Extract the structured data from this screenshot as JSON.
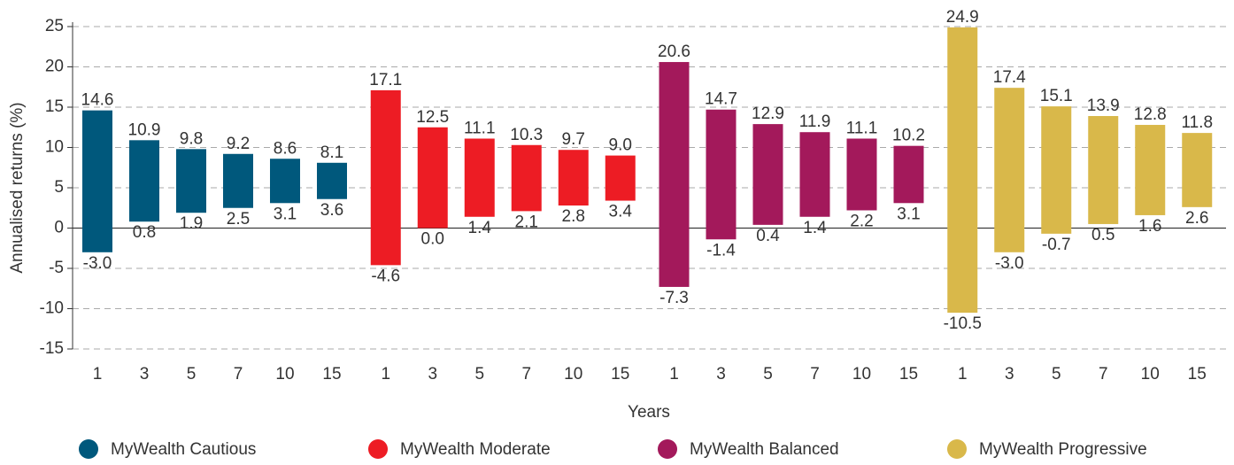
{
  "chart_data": {
    "type": "floating-bar",
    "y_label": "Annualised returns (%)",
    "x_label": "Years",
    "categories": [
      "1",
      "3",
      "5",
      "7",
      "10",
      "15"
    ],
    "ylim": [
      -15,
      25
    ],
    "yticks": [
      -15,
      -10,
      -5,
      0,
      5,
      10,
      15,
      20,
      25
    ],
    "grid": true,
    "series": [
      {
        "name": "MyWealth Cautious",
        "color": "#00587c",
        "low": [
          -3.0,
          0.8,
          1.9,
          2.5,
          3.1,
          3.6
        ],
        "high": [
          14.6,
          10.9,
          9.8,
          9.2,
          8.6,
          8.1
        ],
        "low_labels": [
          "-3.0",
          "0.8",
          "1.9",
          "2.5",
          "3.1",
          "3.6"
        ],
        "high_labels": [
          "14.6",
          "10.9",
          "9.8",
          "9.2",
          "8.6",
          "8.1"
        ]
      },
      {
        "name": "MyWealth Moderate",
        "color": "#ed1c24",
        "low": [
          -4.6,
          0.0,
          1.4,
          2.1,
          2.8,
          3.4
        ],
        "high": [
          17.1,
          12.5,
          11.1,
          10.3,
          9.7,
          9.0
        ],
        "low_labels": [
          "-4.6",
          "0.0",
          "1.4",
          "2.1",
          "2.8",
          "3.4"
        ],
        "high_labels": [
          "17.1",
          "12.5",
          "11.1",
          "10.3",
          "9.7",
          "9.0"
        ]
      },
      {
        "name": "MyWealth Balanced",
        "color": "#a3195b",
        "low": [
          -7.3,
          -1.4,
          0.4,
          1.4,
          2.2,
          3.1
        ],
        "high": [
          20.6,
          14.7,
          12.9,
          11.9,
          11.1,
          10.2
        ],
        "low_labels": [
          "-7.3",
          "-1.4",
          "0.4",
          "1.4",
          "2.2",
          "3.1"
        ],
        "high_labels": [
          "20.6",
          "14.7",
          "12.9",
          "11.9",
          "11.1",
          "10.2"
        ]
      },
      {
        "name": "MyWealth Progressive",
        "color": "#d9b84a",
        "low": [
          -10.5,
          -3.0,
          -0.7,
          0.5,
          1.6,
          2.6
        ],
        "high": [
          24.9,
          17.4,
          15.1,
          13.9,
          12.8,
          11.8
        ],
        "low_labels": [
          "-10.5",
          "-3.0",
          "-0.7",
          "0.5",
          "1.6",
          "2.6"
        ],
        "high_labels": [
          "24.9",
          "17.4",
          "15.1",
          "13.9",
          "12.8",
          "11.8"
        ]
      }
    ]
  }
}
